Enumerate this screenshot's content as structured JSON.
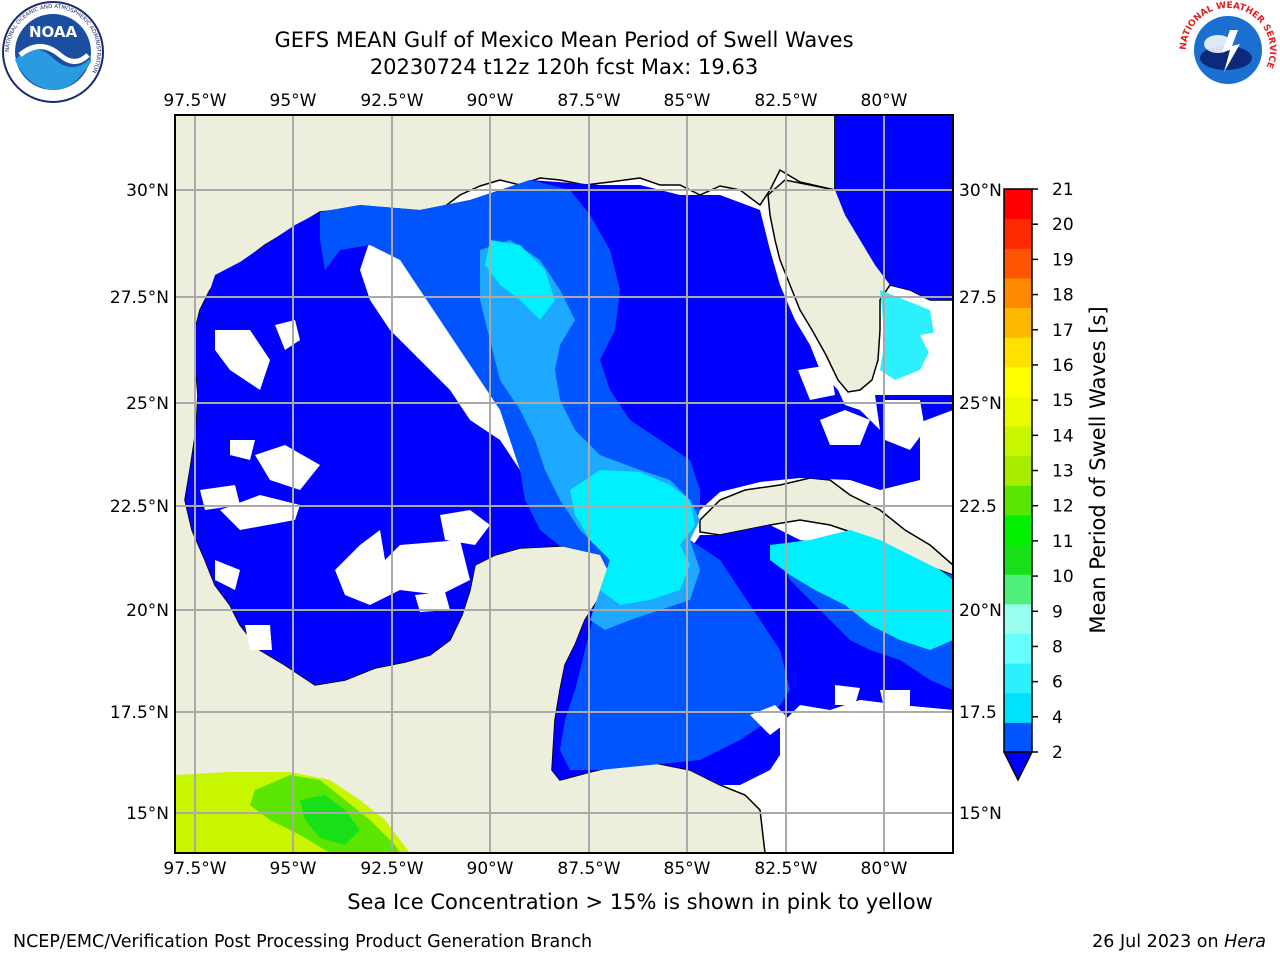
{
  "title": {
    "line1": "GEFS MEAN Gulf of Mexico Mean Period of Swell Waves",
    "line2": "20230724 t12z 120h fcst   Max: 19.63"
  },
  "map": {
    "lon_ticks": [
      "97.5°W",
      "95°W",
      "92.5°W",
      "90°W",
      "87.5°W",
      "85°W",
      "82.5°W",
      "80°W"
    ],
    "lat_ticks_left": [
      "30°N",
      "27.5°N",
      "25°N",
      "22.5°N",
      "20°N",
      "17.5°N",
      "15°N"
    ],
    "lat_ticks_right": [
      "30°N",
      "27.5",
      "25°N",
      "22.5",
      "20°N",
      "17.5",
      "15°N"
    ],
    "colors": {
      "land": "#eeeedc",
      "ocean_undefined": "#ffffff",
      "gridline": "#aaaaaa",
      "coastline": "#000000"
    }
  },
  "colorbar": {
    "label": "Mean Period of Swell Waves [s]",
    "ticks": [
      "2",
      "4",
      "6",
      "8",
      "9",
      "10",
      "11",
      "12",
      "13",
      "14",
      "15",
      "16",
      "17",
      "18",
      "19",
      "20",
      "21"
    ],
    "colors": [
      "#0055ff",
      "#00e1ff",
      "#2df0ff",
      "#66ffff",
      "#99ffee",
      "#4cf07a",
      "#18e018",
      "#00f000",
      "#5ae600",
      "#a8ed00",
      "#c8f500",
      "#ecfa00",
      "#ffff00",
      "#ffe100",
      "#ffb800",
      "#ff8a00",
      "#ff5500",
      "#ff2a00",
      "#ff0000"
    ],
    "under_color": "#0000ff"
  },
  "footnote": "Sea Ice Concentration > 15% is shown in pink to yellow",
  "credits": {
    "left": "NCEP/EMC/Verification Post Processing Product Generation Branch",
    "right_date": "26 Jul 2023 on ",
    "right_machine": "Hera"
  },
  "logos": {
    "noaa": {
      "text": "NOAA",
      "ring": "NATIONAL OCEANIC AND ATMOSPHERIC ADMINISTRATION"
    },
    "nws": {
      "ring": "NATIONAL WEATHER SERVICE"
    }
  }
}
